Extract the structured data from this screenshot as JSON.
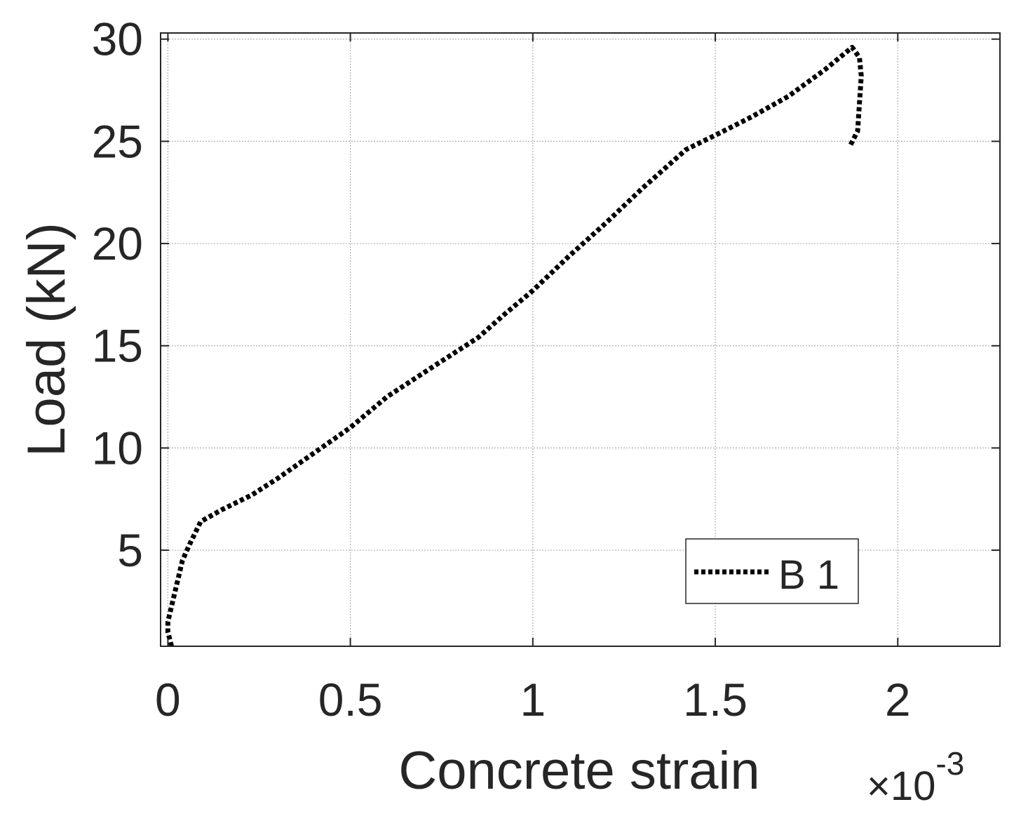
{
  "chart_data": {
    "type": "line",
    "title": "",
    "xlabel": "Concrete strain",
    "ylabel": "Load (kN)",
    "x_exponent_label": "×10",
    "x_exponent_power": "-3",
    "xlim": [
      -0.02,
      2.28
    ],
    "ylim": [
      0.3,
      30.3
    ],
    "xticks": [
      0,
      0.5,
      1,
      1.5,
      2
    ],
    "xtick_labels": [
      "0",
      "0.5",
      "1",
      "1.5",
      "2"
    ],
    "yticks": [
      5,
      10,
      15,
      20,
      25,
      30
    ],
    "ytick_labels": [
      "5",
      "10",
      "15",
      "20",
      "25",
      "30"
    ],
    "grid": true,
    "legend_position": "bottom-right",
    "series": [
      {
        "name": "B 1",
        "color": "#000000",
        "line_style": "dotted",
        "x": [
          0.01,
          0.0,
          0.0,
          0.02,
          0.04,
          0.06,
          0.09,
          0.15,
          0.23,
          0.3,
          0.38,
          0.5,
          0.6,
          0.72,
          0.85,
          0.92,
          1.0,
          1.1,
          1.2,
          1.3,
          1.42,
          1.5,
          1.6,
          1.7,
          1.8,
          1.875,
          1.895,
          1.9,
          1.89,
          1.87
        ],
        "y": [
          0.3,
          1.0,
          1.5,
          3.0,
          4.5,
          5.3,
          6.4,
          7.0,
          7.7,
          8.5,
          9.5,
          11.0,
          12.5,
          13.9,
          15.4,
          16.5,
          17.7,
          19.4,
          21.0,
          22.7,
          24.6,
          25.3,
          26.2,
          27.2,
          28.5,
          29.6,
          29.1,
          28.2,
          25.5,
          24.8
        ]
      }
    ]
  }
}
